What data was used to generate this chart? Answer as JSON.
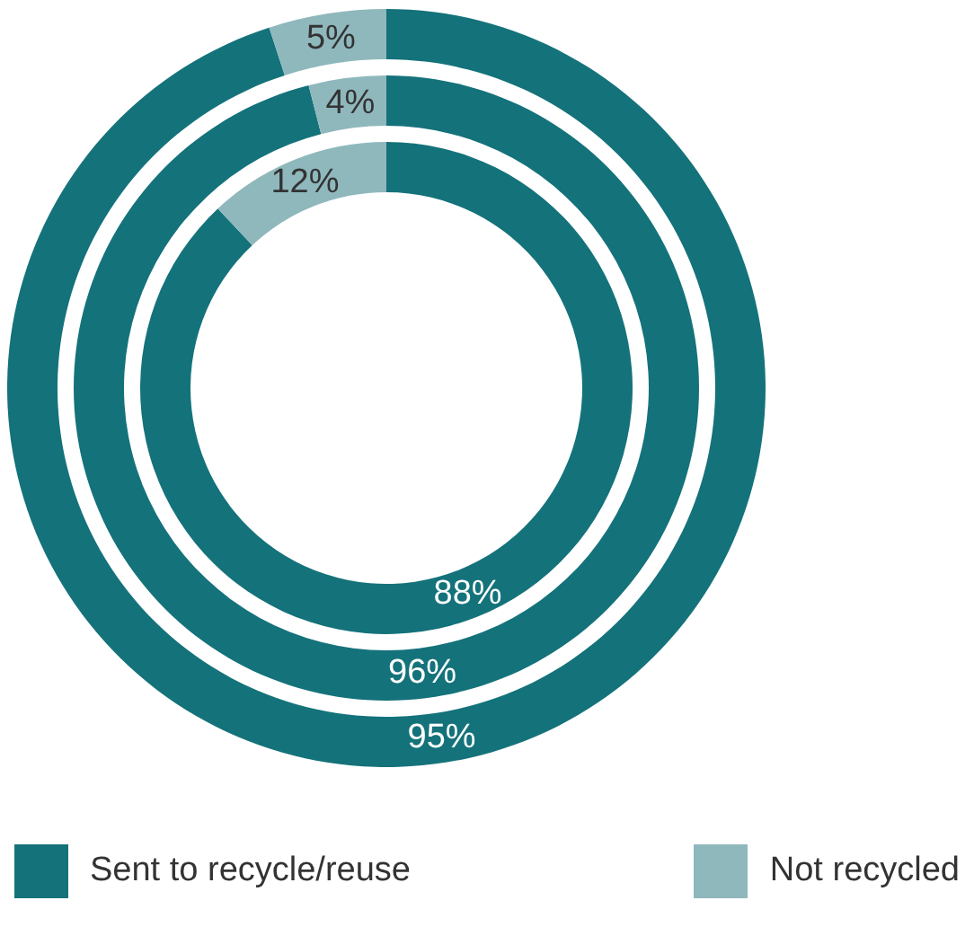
{
  "chart_data": [
    {
      "type": "donut",
      "categories": [
        "Sent to recycle/reuse",
        "Not recycled"
      ],
      "colors": [
        "#14727a",
        "#8fb8bd"
      ],
      "legend": "bottom",
      "values": [
        95,
        5
      ],
      "value_labels": [
        "95%",
        "5%"
      ]
    },
    {
      "type": "donut",
      "colors": [
        "#14727a",
        "#8fb8bd"
      ],
      "values": [
        96,
        4
      ],
      "value_labels": [
        "96%",
        "4%"
      ]
    },
    {
      "type": "donut",
      "colors": [
        "#14727a",
        "#8fb8bd"
      ],
      "values": [
        88,
        12
      ],
      "value_labels": [
        "88%",
        "12%"
      ]
    }
  ]
}
